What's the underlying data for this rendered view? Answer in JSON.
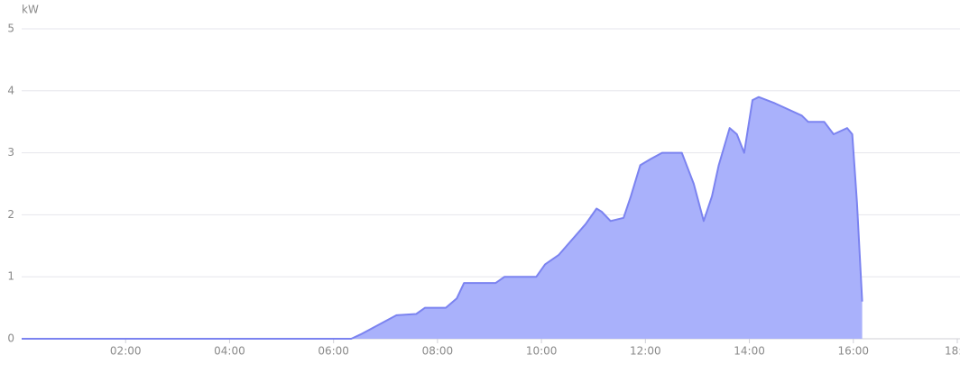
{
  "chart_data": {
    "type": "area",
    "y_label": "kW",
    "x": [
      0,
      6.34,
      6.52,
      7.21,
      7.59,
      7.76,
      8.16,
      8.37,
      8.51,
      9.12,
      9.29,
      9.9,
      10.07,
      10.33,
      10.59,
      10.85,
      11.06,
      11.16,
      11.33,
      11.58,
      11.72,
      11.9,
      12.1,
      12.32,
      12.7,
      12.93,
      13.12,
      13.28,
      13.41,
      13.62,
      13.76,
      13.9,
      14.06,
      14.18,
      14.49,
      15.01,
      15.13,
      15.44,
      15.62,
      15.88,
      15.98,
      16.07,
      16.17
    ],
    "values": [
      0,
      0,
      0.07,
      0.38,
      0.4,
      0.5,
      0.5,
      0.65,
      0.9,
      0.9,
      1.0,
      1.0,
      1.2,
      1.35,
      1.6,
      1.85,
      2.1,
      2.05,
      1.9,
      1.95,
      2.3,
      2.8,
      2.9,
      3.0,
      3.0,
      2.5,
      1.9,
      2.3,
      2.8,
      3.4,
      3.3,
      3.0,
      3.85,
      3.9,
      3.8,
      3.6,
      3.5,
      3.5,
      3.3,
      3.4,
      3.3,
      2.2,
      0.6
    ],
    "color": "#7b83f0",
    "fill": "#a9b1fb",
    "xlim": [
      0,
      18
    ],
    "xticks": [
      {
        "value": 2,
        "label": "02:00"
      },
      {
        "value": 4,
        "label": "04:00"
      },
      {
        "value": 6,
        "label": "06:00"
      },
      {
        "value": 8,
        "label": "08:00"
      },
      {
        "value": 10,
        "label": "10:00"
      },
      {
        "value": 12,
        "label": "12:00"
      },
      {
        "value": 14,
        "label": "14:00"
      },
      {
        "value": 16,
        "label": "16:00"
      },
      {
        "value": 18,
        "label": "18:"
      }
    ],
    "ylim": [
      0,
      5
    ],
    "yticks": [
      0,
      1,
      2,
      3,
      4,
      5
    ],
    "grid": true
  }
}
